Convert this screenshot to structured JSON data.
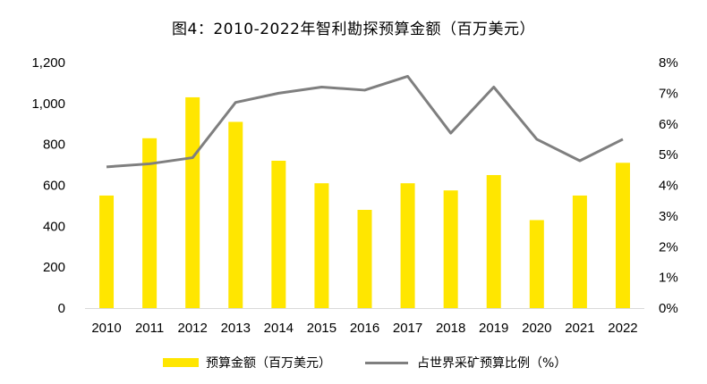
{
  "title": "图4：2010-2022年智利勘探预算金额（百万美元）",
  "chart_data": {
    "type": "bar",
    "categories": [
      "2010",
      "2011",
      "2012",
      "2013",
      "2014",
      "2015",
      "2016",
      "2017",
      "2018",
      "2019",
      "2020",
      "2021",
      "2022"
    ],
    "series": [
      {
        "name": "预算金额（百万美元）",
        "type": "bar",
        "axis": "left",
        "color": "#FFE600",
        "values": [
          550,
          830,
          1030,
          910,
          720,
          610,
          480,
          610,
          575,
          650,
          430,
          550,
          710
        ]
      },
      {
        "name": "占世界采矿预算比例（%）",
        "type": "line",
        "axis": "right",
        "color": "#7F7F7F",
        "values": [
          4.6,
          4.7,
          4.9,
          6.7,
          7.0,
          7.2,
          7.1,
          7.55,
          5.7,
          7.2,
          5.5,
          4.8,
          5.5
        ]
      }
    ],
    "y_left": {
      "lim": [
        0,
        1200
      ],
      "ticks": [
        "0",
        "200",
        "400",
        "600",
        "800",
        "1,000",
        "1,200"
      ]
    },
    "y_right": {
      "lim": [
        0,
        8
      ],
      "ticks": [
        "0%",
        "1%",
        "2%",
        "3%",
        "4%",
        "5%",
        "6%",
        "7%",
        "8%"
      ]
    },
    "grid": false,
    "legend_position": "bottom"
  }
}
